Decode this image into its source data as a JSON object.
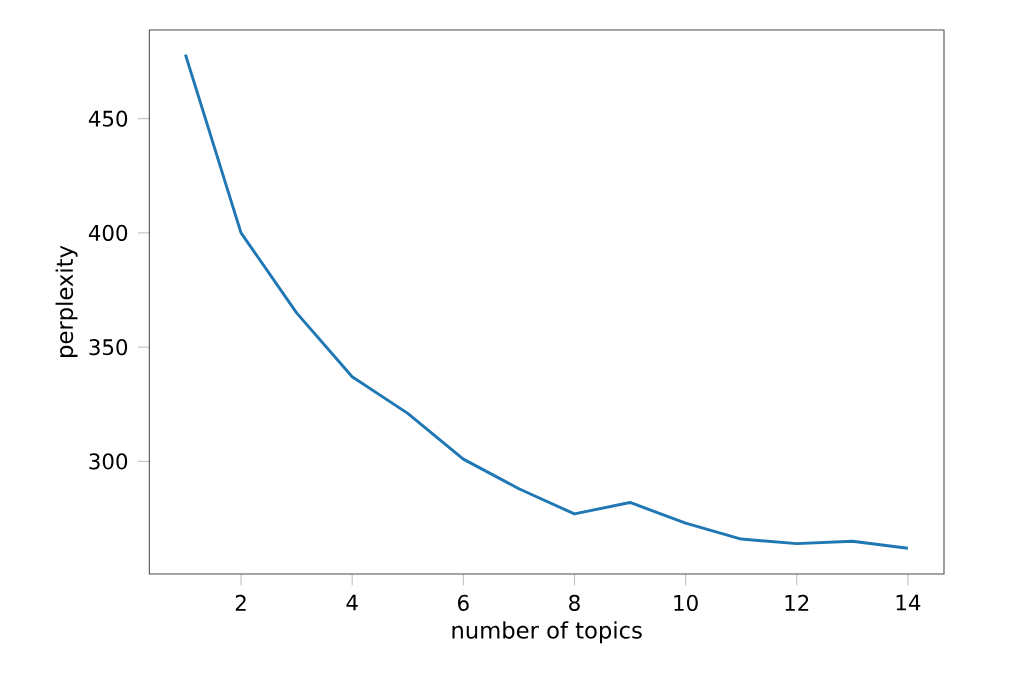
{
  "chart_data": {
    "type": "line",
    "xlabel": "number of topics",
    "ylabel": "perplexity",
    "x": [
      1,
      2,
      3,
      4,
      5,
      6,
      7,
      8,
      9,
      10,
      11,
      12,
      13,
      14
    ],
    "series": [
      {
        "color": "#1f77b4",
        "values": [
          478,
          400,
          365,
          337,
          321,
          301,
          288,
          277,
          282,
          273,
          266,
          264,
          265,
          262
        ]
      }
    ],
    "xlim": [
      0.35,
      14.65
    ],
    "ylim": [
      250.7,
      488.8
    ],
    "xticks": [
      2,
      4,
      6,
      8,
      10,
      12,
      14
    ],
    "yticks": [
      300,
      350,
      400,
      450
    ],
    "marker": "none",
    "line_style": "solid"
  }
}
